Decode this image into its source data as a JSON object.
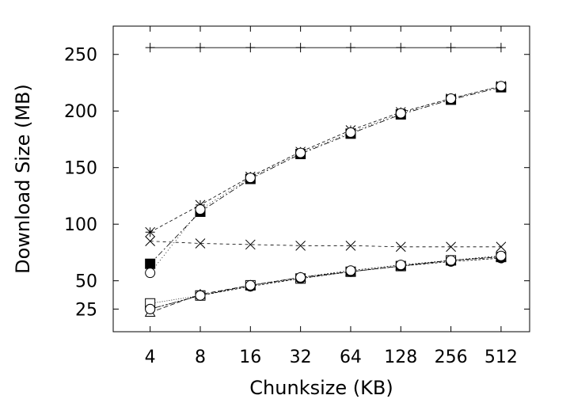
{
  "chart_data": {
    "type": "line",
    "xlabel": "Chunksize (KB)",
    "ylabel": "Download Size (MB)",
    "x": [
      4,
      8,
      16,
      32,
      64,
      128,
      256,
      512
    ],
    "x_scale": "log2",
    "xlim": [
      2.4,
      760
    ],
    "ylim": [
      5,
      275
    ],
    "yticks": [
      25,
      50,
      100,
      150,
      200,
      250
    ],
    "grid": false,
    "legend": "none",
    "series": [
      {
        "marker": "plus",
        "dash": "",
        "values": [
          256,
          256,
          256,
          256,
          256,
          256,
          256,
          256
        ]
      },
      {
        "marker": "star",
        "dash": "4 3",
        "values": [
          93,
          117,
          142,
          164,
          183,
          199,
          211,
          222
        ]
      },
      {
        "marker": "filled-square",
        "dash": "7 3 2 3",
        "values": [
          65,
          111,
          140,
          162,
          180,
          197,
          210,
          221
        ]
      },
      {
        "marker": "open-circle",
        "dash": "1 3",
        "values": [
          57,
          113,
          141,
          163,
          181,
          198,
          211,
          222
        ]
      },
      {
        "marker": "cross",
        "dash": "4 4",
        "values": [
          85,
          83,
          82,
          81,
          81,
          80,
          80,
          80
        ]
      },
      {
        "marker": "open-square",
        "dash": "1 2",
        "values": [
          30,
          37,
          46,
          52,
          58,
          63,
          68,
          71
        ]
      },
      {
        "marker": "triangle",
        "dash": "6 3",
        "values": [
          22,
          38,
          46,
          53,
          58,
          63,
          68,
          71
        ]
      },
      {
        "marker": "filled-circle",
        "dash": "3 2",
        "values": [
          25,
          37,
          45,
          52,
          58,
          63,
          67,
          70
        ]
      },
      {
        "marker": "open-circle",
        "dash": "2 2",
        "values": [
          25,
          37,
          46,
          53,
          59,
          64,
          68,
          72
        ]
      }
    ]
  }
}
